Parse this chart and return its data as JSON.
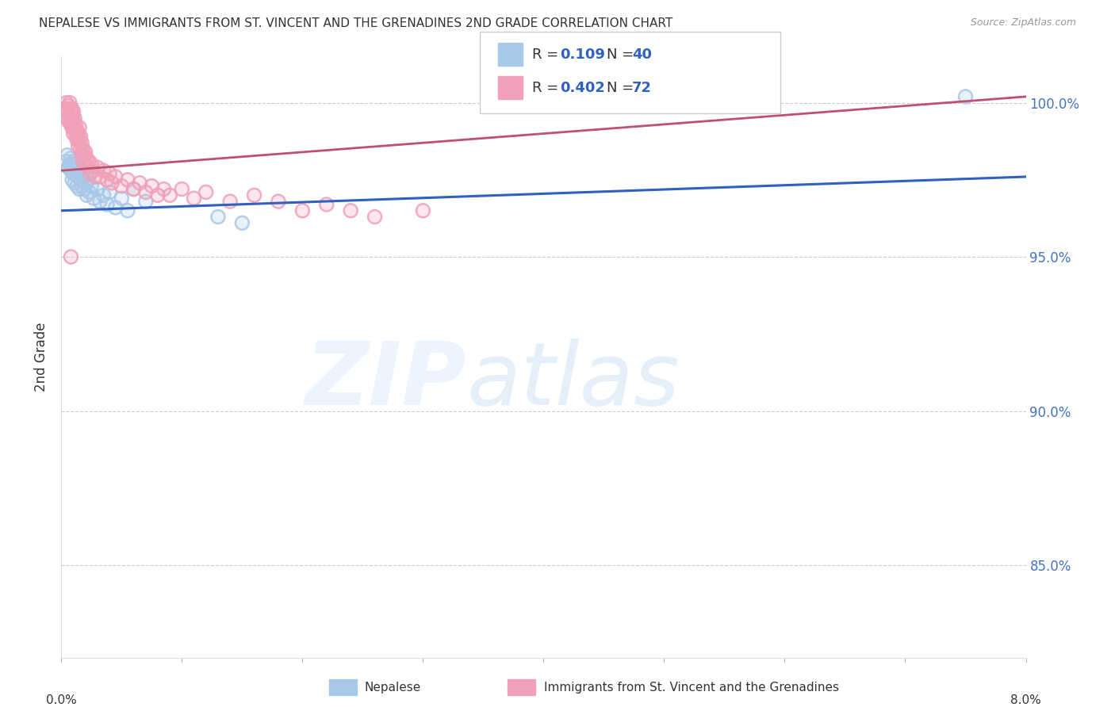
{
  "title": "NEPALESE VS IMMIGRANTS FROM ST. VINCENT AND THE GRENADINES 2ND GRADE CORRELATION CHART",
  "source": "Source: ZipAtlas.com",
  "ylabel": "2nd Grade",
  "xlim": [
    0.0,
    8.0
  ],
  "ylim": [
    82.0,
    101.5
  ],
  "yticks": [
    85.0,
    90.0,
    95.0,
    100.0
  ],
  "ytick_labels": [
    "85.0%",
    "90.0%",
    "95.0%",
    "100.0%"
  ],
  "xticks": [
    0.0,
    1.0,
    2.0,
    3.0,
    4.0,
    5.0,
    6.0,
    7.0,
    8.0
  ],
  "nepalese_color": "#a8c8e8",
  "svg_color": "#f0a0b8",
  "nepalese_line_color": "#3060c0",
  "svg_line_color": "#c05070",
  "nepalese_line": [
    0.0,
    96.5,
    8.0,
    97.6
  ],
  "svg_line": [
    0.0,
    97.8,
    8.0,
    100.2
  ],
  "nepalese_points": [
    [
      0.04,
      98.1
    ],
    [
      0.05,
      98.3
    ],
    [
      0.06,
      97.9
    ],
    [
      0.07,
      98.0
    ],
    [
      0.08,
      97.8
    ],
    [
      0.08,
      98.2
    ],
    [
      0.09,
      97.5
    ],
    [
      0.09,
      98.0
    ],
    [
      0.1,
      97.7
    ],
    [
      0.1,
      98.1
    ],
    [
      0.11,
      97.4
    ],
    [
      0.12,
      97.8
    ],
    [
      0.13,
      97.3
    ],
    [
      0.13,
      97.9
    ],
    [
      0.14,
      97.6
    ],
    [
      0.15,
      97.2
    ],
    [
      0.15,
      97.8
    ],
    [
      0.16,
      97.5
    ],
    [
      0.17,
      97.3
    ],
    [
      0.18,
      97.6
    ],
    [
      0.19,
      97.2
    ],
    [
      0.2,
      97.4
    ],
    [
      0.21,
      97.0
    ],
    [
      0.22,
      97.5
    ],
    [
      0.23,
      97.1
    ],
    [
      0.25,
      97.3
    ],
    [
      0.27,
      96.9
    ],
    [
      0.3,
      97.2
    ],
    [
      0.32,
      96.8
    ],
    [
      0.35,
      97.0
    ],
    [
      0.38,
      96.7
    ],
    [
      0.4,
      97.1
    ],
    [
      0.45,
      96.6
    ],
    [
      0.5,
      96.9
    ],
    [
      0.55,
      96.5
    ],
    [
      0.6,
      97.2
    ],
    [
      0.7,
      96.8
    ],
    [
      1.3,
      96.3
    ],
    [
      1.5,
      96.1
    ],
    [
      7.5,
      100.2
    ]
  ],
  "svg_points": [
    [
      0.02,
      99.8
    ],
    [
      0.03,
      99.6
    ],
    [
      0.04,
      100.0
    ],
    [
      0.04,
      99.7
    ],
    [
      0.05,
      99.5
    ],
    [
      0.05,
      99.8
    ],
    [
      0.06,
      99.4
    ],
    [
      0.06,
      99.9
    ],
    [
      0.07,
      99.6
    ],
    [
      0.07,
      100.0
    ],
    [
      0.08,
      99.3
    ],
    [
      0.08,
      99.7
    ],
    [
      0.09,
      99.5
    ],
    [
      0.09,
      99.2
    ],
    [
      0.09,
      99.8
    ],
    [
      0.1,
      99.0
    ],
    [
      0.1,
      99.4
    ],
    [
      0.1,
      99.7
    ],
    [
      0.11,
      99.2
    ],
    [
      0.11,
      99.5
    ],
    [
      0.12,
      99.0
    ],
    [
      0.12,
      99.3
    ],
    [
      0.13,
      98.8
    ],
    [
      0.13,
      99.1
    ],
    [
      0.14,
      98.6
    ],
    [
      0.14,
      99.0
    ],
    [
      0.15,
      98.8
    ],
    [
      0.15,
      99.2
    ],
    [
      0.16,
      98.5
    ],
    [
      0.16,
      98.9
    ],
    [
      0.17,
      98.3
    ],
    [
      0.17,
      98.7
    ],
    [
      0.18,
      98.1
    ],
    [
      0.18,
      98.5
    ],
    [
      0.19,
      98.3
    ],
    [
      0.2,
      98.0
    ],
    [
      0.2,
      98.4
    ],
    [
      0.21,
      98.2
    ],
    [
      0.22,
      97.9
    ],
    [
      0.23,
      98.1
    ],
    [
      0.24,
      97.7
    ],
    [
      0.25,
      98.0
    ],
    [
      0.26,
      97.8
    ],
    [
      0.28,
      97.6
    ],
    [
      0.3,
      97.9
    ],
    [
      0.32,
      97.6
    ],
    [
      0.35,
      97.8
    ],
    [
      0.38,
      97.5
    ],
    [
      0.4,
      97.7
    ],
    [
      0.42,
      97.4
    ],
    [
      0.45,
      97.6
    ],
    [
      0.5,
      97.3
    ],
    [
      0.55,
      97.5
    ],
    [
      0.6,
      97.2
    ],
    [
      0.65,
      97.4
    ],
    [
      0.7,
      97.1
    ],
    [
      0.75,
      97.3
    ],
    [
      0.8,
      97.0
    ],
    [
      0.85,
      97.2
    ],
    [
      0.9,
      97.0
    ],
    [
      1.0,
      97.2
    ],
    [
      1.1,
      96.9
    ],
    [
      1.2,
      97.1
    ],
    [
      1.4,
      96.8
    ],
    [
      1.6,
      97.0
    ],
    [
      1.8,
      96.8
    ],
    [
      2.0,
      96.5
    ],
    [
      2.2,
      96.7
    ],
    [
      2.4,
      96.5
    ],
    [
      2.6,
      96.3
    ],
    [
      3.0,
      96.5
    ],
    [
      0.08,
      95.0
    ]
  ],
  "title_fontsize": 11,
  "axis_label_color": "#333333",
  "tick_color_right": "#4472c4",
  "background_color": "#ffffff",
  "grid_color": "#cccccc"
}
